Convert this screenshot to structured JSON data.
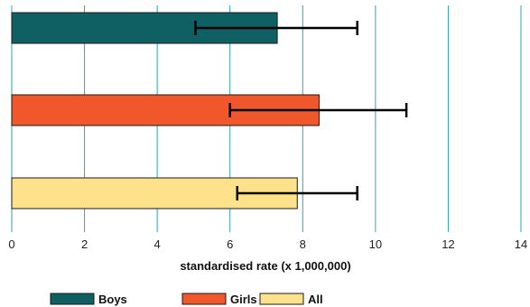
{
  "chart_data": {
    "type": "bar",
    "orientation": "horizontal",
    "categories": [
      "Boys",
      "Girls",
      "All"
    ],
    "series": [
      {
        "name": "Boys",
        "value": 7.3,
        "error_low": 5.05,
        "error_high": 9.5,
        "color": "#0e6063"
      },
      {
        "name": "Girls",
        "value": 8.45,
        "error_low": 6.0,
        "error_high": 10.85,
        "color": "#f0582b"
      },
      {
        "name": "All",
        "value": 7.85,
        "error_low": 6.2,
        "error_high": 9.5,
        "color": "#fde18b"
      }
    ],
    "xlabel": "standardised rate (x 1,000,000)",
    "xlim": [
      0,
      14
    ],
    "xticks": [
      0,
      2,
      4,
      6,
      8,
      10,
      12,
      14
    ],
    "grid": "vertical",
    "grid_color": "#2aa6b0",
    "legend_position": "bottom"
  }
}
